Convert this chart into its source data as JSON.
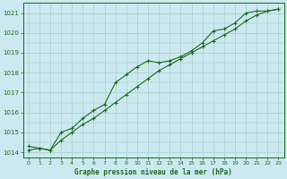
{
  "title": "Graphe pression niveau de la mer (hPa)",
  "bg_color": "#cce8f0",
  "grid_color": "#99ccbb",
  "line_color": "#1a6b1a",
  "xlim": [
    -0.5,
    23.5
  ],
  "ylim": [
    1013.75,
    1021.5
  ],
  "xticks": [
    0,
    1,
    2,
    3,
    4,
    5,
    6,
    7,
    8,
    9,
    10,
    11,
    12,
    13,
    14,
    15,
    16,
    17,
    18,
    19,
    20,
    21,
    22,
    23
  ],
  "yticks": [
    1014,
    1015,
    1016,
    1017,
    1018,
    1019,
    1020,
    1021
  ],
  "series1_jagged": {
    "x": [
      0,
      1,
      2,
      3,
      4,
      5,
      6,
      7,
      8,
      9,
      10,
      11,
      12,
      13,
      14,
      15,
      16,
      17,
      18,
      19,
      20,
      21,
      22,
      23
    ],
    "y": [
      1014.3,
      1014.2,
      1014.1,
      1015.0,
      1015.2,
      1015.7,
      1016.1,
      1016.4,
      1017.5,
      1017.9,
      1018.3,
      1018.6,
      1018.5,
      1018.6,
      1018.8,
      1019.1,
      1019.5,
      1020.1,
      1020.2,
      1020.5,
      1021.0,
      1021.1,
      1021.1,
      1021.2
    ]
  },
  "series2_smooth": {
    "x": [
      0,
      1,
      2,
      3,
      4,
      5,
      6,
      7,
      8,
      9,
      10,
      11,
      12,
      13,
      14,
      15,
      16,
      17,
      18,
      19,
      20,
      21,
      22,
      23
    ],
    "y": [
      1014.1,
      1014.2,
      1014.1,
      1014.6,
      1015.0,
      1015.4,
      1015.7,
      1016.1,
      1016.5,
      1016.9,
      1017.3,
      1017.7,
      1018.1,
      1018.4,
      1018.7,
      1019.0,
      1019.3,
      1019.6,
      1019.9,
      1020.2,
      1020.6,
      1020.9,
      1021.1,
      1021.2
    ]
  }
}
